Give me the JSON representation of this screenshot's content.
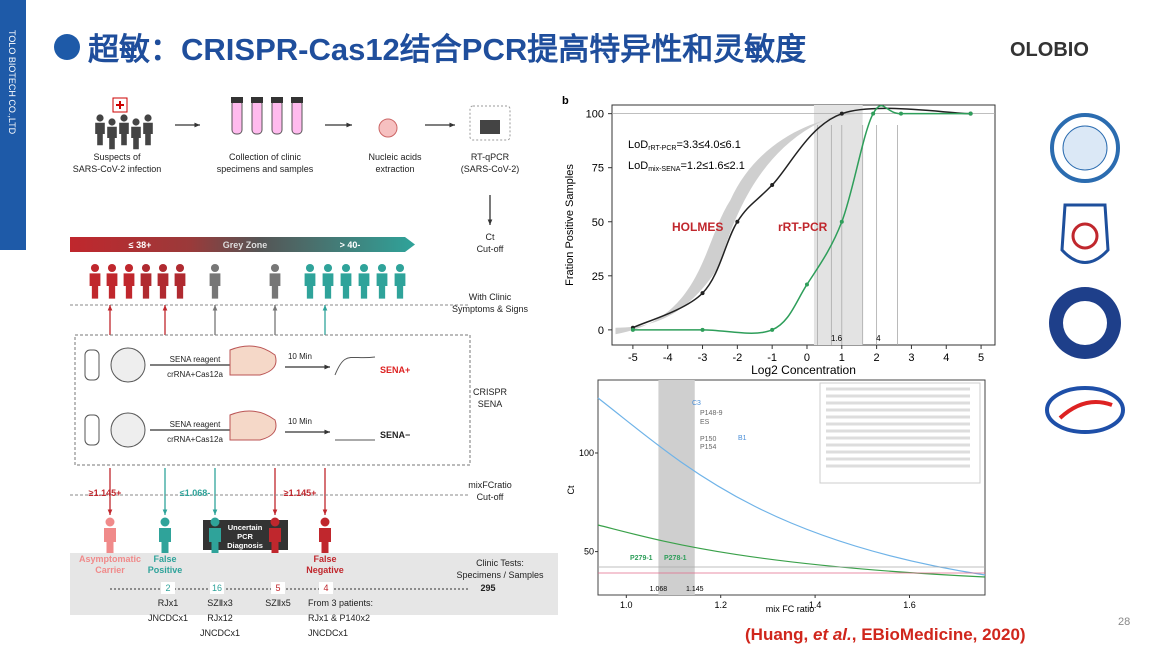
{
  "sidebar": "TOLO BIOTECH CO.,LTD",
  "title": "超敏：CRISPR-Cas12结合PCR提高特异性和灵敏度",
  "brand": "OLOBIO",
  "workflow": {
    "steps": [
      [
        "Suspects of",
        "SARS-CoV-2 infection"
      ],
      [
        "Collection of clinic",
        "specimens and samples"
      ],
      [
        "Nucleic acids",
        "extraction"
      ],
      [
        "RT-qPCR",
        "(SARS-CoV-2)"
      ]
    ],
    "ct_cutoff": [
      "Ct",
      "Cut-off"
    ],
    "zones": [
      "≤ 38+",
      "Grey Zone",
      "> 40-"
    ],
    "symptoms": [
      "With Clinic",
      "Symptoms & Signs"
    ],
    "reagent": [
      "SENA reagent",
      "crRNA+Cas12a"
    ],
    "time": "10 Min",
    "sena_pos": "SENA+",
    "sena_neg": "SENA−",
    "crispr": [
      "CRISPR",
      "SENA"
    ],
    "ratio_cutoff": [
      "mixFCratio",
      "Cut-off"
    ],
    "thresholds": [
      "≥1.145+",
      "≤1.068-",
      "≥1.145+"
    ],
    "uncertain": [
      "Uncertain",
      "PCR",
      "Diagnosis"
    ],
    "groups": [
      [
        "Asymptomatic",
        "Carrier"
      ],
      [
        "False",
        "Positive"
      ],
      [
        "False",
        "Negative"
      ]
    ],
    "clinic_tests": [
      "Clinic Tests:",
      "Specimens / Samples"
    ],
    "total": "295",
    "counts": [
      "2",
      "16",
      "5",
      "4"
    ],
    "sources": [
      [
        "RJx1",
        "JNCDCx1"
      ],
      [
        "SZⅡx3",
        "RJx12",
        "JNCDCx1"
      ],
      [
        "SZⅡx5"
      ],
      [
        "From 3 patients:",
        "RJx1 & P140x2",
        "JNCDCx1"
      ]
    ]
  },
  "chart_b": {
    "type": "line",
    "panel_label": "b",
    "x_label": "Log2 Concentration",
    "y_label": "Fration Positive Samples",
    "xlim": [
      -5.6,
      5.4
    ],
    "ylim": [
      -7,
      104
    ],
    "xticks": [
      -5,
      -4,
      -3,
      -2,
      -1,
      0,
      1,
      2,
      3,
      4,
      5
    ],
    "yticks": [
      0,
      25,
      50,
      75,
      100
    ],
    "series": [
      {
        "name": "HOLMES",
        "color": "#222222",
        "x": [
          -5,
          -3,
          -2,
          -1,
          1,
          4.7
        ],
        "values": [
          1,
          17,
          50,
          67,
          100,
          100
        ]
      },
      {
        "name": "rRT-PCR",
        "color": "#2e9e5a",
        "x": [
          -5,
          -3,
          -1,
          0,
          1,
          1.9,
          2.7,
          4.7
        ],
        "values": [
          0,
          0,
          0,
          21,
          50,
          100,
          100,
          100
        ]
      }
    ],
    "lod": [
      {
        "main": "LoD",
        "sub": "rRT-PCR",
        "rest": "=3.3≤4.0≤6.1"
      },
      {
        "main": "LoD",
        "sub": "mix-SENA",
        "rest": "=1.2≤1.6≤2.1"
      }
    ],
    "marks": [
      "1.6",
      "4"
    ]
  },
  "chart_c": {
    "type": "scatter",
    "x_label": "mix FC ratio",
    "y_label": "Ct",
    "xlim": [
      0.94,
      1.76
    ],
    "ylim": [
      28,
      137
    ],
    "xticks": [
      {
        "value": 1,
        "label": "1.0"
      },
      1.2,
      1.4,
      1.6
    ],
    "yticks": [
      50,
      100
    ],
    "band": [
      {
        "value": 1.068,
        "label": "1.068"
      },
      {
        "value": 1.145,
        "label": "1.145"
      }
    ],
    "labels": [
      "C3",
      "P148-9",
      "ES",
      "P150",
      "P154",
      "B1",
      "P279-1",
      "P278-1"
    ]
  },
  "citation": {
    "pre": "(Huang, ",
    "em": "et al.",
    "post": ", EBioMedicine, 2020)"
  },
  "page_number": "28"
}
